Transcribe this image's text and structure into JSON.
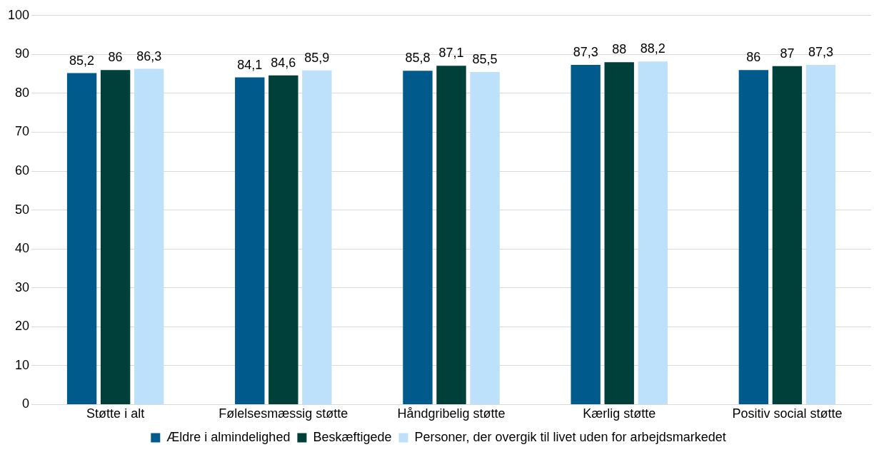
{
  "chart_data": {
    "type": "bar",
    "categories": [
      "Støtte i alt",
      "Følelsesmæssig støtte",
      "Håndgribelig støtte",
      "Kærlig støtte",
      "Positiv social støtte"
    ],
    "series": [
      {
        "name": "Ældre i almindelighed",
        "color": "#005a8c",
        "values": [
          85.2,
          84.1,
          85.8,
          87.3,
          86
        ],
        "value_labels": [
          "85,2",
          "84,1",
          "85,8",
          "87,3",
          "86"
        ]
      },
      {
        "name": "Beskæftigede",
        "color": "#00403a",
        "values": [
          86,
          84.6,
          87.1,
          88,
          87
        ],
        "value_labels": [
          "86",
          "84,6",
          "87,1",
          "88",
          "87"
        ]
      },
      {
        "name": "Personer, der overgik til livet uden for arbejdsmarkedet",
        "color": "#bde0fb",
        "values": [
          86.3,
          85.9,
          85.5,
          88.2,
          87.3
        ],
        "value_labels": [
          "86,3",
          "85,9",
          "85,5",
          "88,2",
          "87,3"
        ]
      }
    ],
    "ylim": [
      0,
      100
    ],
    "yticks": [
      0,
      10,
      20,
      30,
      40,
      50,
      60,
      70,
      80,
      90,
      100
    ],
    "grid": "y",
    "legend": "bottom"
  }
}
